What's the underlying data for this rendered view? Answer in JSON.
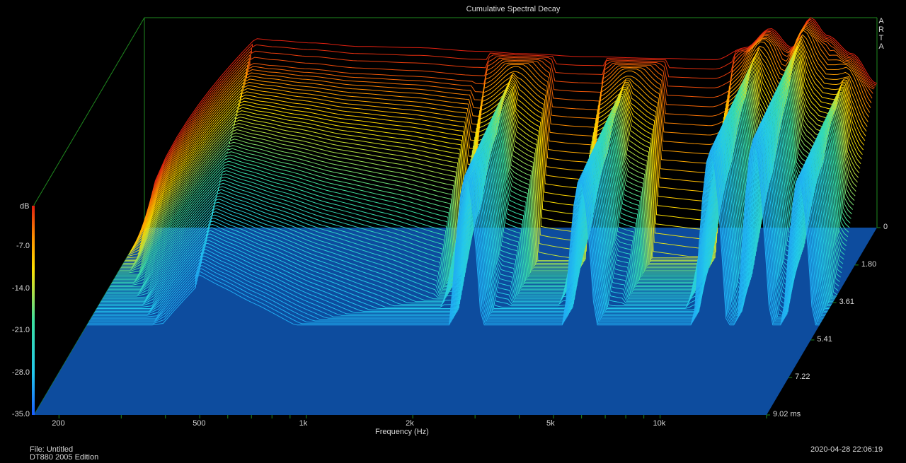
{
  "chart_data": {
    "type": "waterfall",
    "title": "Cumulative Spectral Decay",
    "xlabel": "Frequency (Hz)",
    "x_scale": "log",
    "x_ticks": [
      {
        "value": 200,
        "label": "200"
      },
      {
        "value": 500,
        "label": "500"
      },
      {
        "value": 1000,
        "label": "1k"
      },
      {
        "value": 2000,
        "label": "2k"
      },
      {
        "value": 5000,
        "label": "5k"
      },
      {
        "value": 10000,
        "label": "10k"
      }
    ],
    "xlim": [
      170,
      20000
    ],
    "time_label_unit": "ms",
    "time_ticks": [
      {
        "value": 0,
        "label": "0"
      },
      {
        "value": 1.8,
        "label": "1.80"
      },
      {
        "value": 3.61,
        "label": "3.61"
      },
      {
        "value": 5.41,
        "label": "5.41"
      },
      {
        "value": 7.22,
        "label": "7.22"
      },
      {
        "value": 9.02,
        "label": "9.02 ms"
      }
    ],
    "time_range": [
      0,
      9.02
    ],
    "z_label": "dB",
    "z_ticks": [
      {
        "value": -7.0,
        "label": "-7.0"
      },
      {
        "value": -14.0,
        "label": "-14.0"
      },
      {
        "value": -21.0,
        "label": "-21.0"
      },
      {
        "value": -28.0,
        "label": "-28.0"
      },
      {
        "value": -35.0,
        "label": "-35.0"
      }
    ],
    "zlim": [
      -35,
      0
    ],
    "colormap": [
      "#1a5cff",
      "#22c8ee",
      "#3ce0a0",
      "#b8e040",
      "#ffe000",
      "#ff9000",
      "#e02010"
    ],
    "floor_color": "#0d4c9e",
    "series_count": 72,
    "envelope_t0": [
      {
        "f": 350,
        "db": -3.5
      },
      {
        "f": 400,
        "db": -3.8
      },
      {
        "f": 500,
        "db": -4.2
      },
      {
        "f": 700,
        "db": -4.8
      },
      {
        "f": 1000,
        "db": -5.0
      },
      {
        "f": 1500,
        "db": -5.6
      },
      {
        "f": 2000,
        "db": -6.0
      },
      {
        "f": 3000,
        "db": -6.5
      },
      {
        "f": 5000,
        "db": -6.8
      },
      {
        "f": 7000,
        "db": -7.0
      },
      {
        "f": 8500,
        "db": -5.0
      },
      {
        "f": 10000,
        "db": -1.8
      },
      {
        "f": 11500,
        "db": -5.0
      },
      {
        "f": 13000,
        "db": 0.0
      },
      {
        "f": 14500,
        "db": -3.0
      },
      {
        "f": 17000,
        "db": -6.0
      },
      {
        "f": 20000,
        "db": -11.0
      }
    ],
    "resonances": [
      {
        "f": 2000,
        "db": -16.0
      },
      {
        "f": 4200,
        "db": -20.0
      },
      {
        "f": 9800,
        "db": -11.0
      },
      {
        "f": 13000,
        "db": -9.0
      },
      {
        "f": 17500,
        "db": -17.0
      }
    ]
  },
  "footer": {
    "file": "File: Untitled",
    "subtitle": "DT880 2005 Edition",
    "timestamp": "2020-04-28  22:06:19"
  },
  "brand": [
    "A",
    "R",
    "T",
    "A"
  ]
}
